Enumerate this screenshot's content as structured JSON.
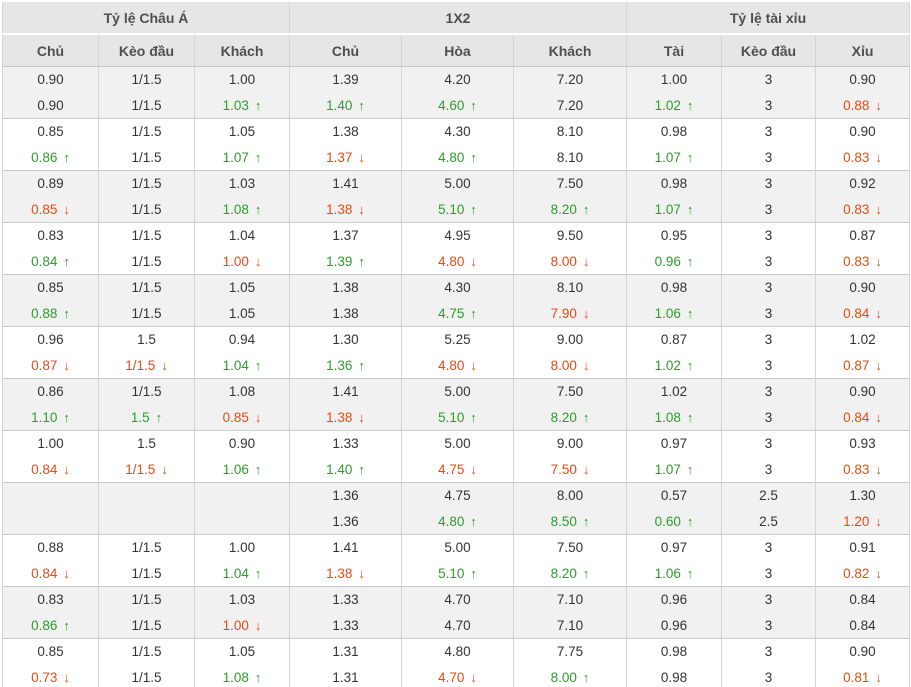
{
  "colors": {
    "up": "#2d9c2d",
    "down": "#e84a15",
    "header_bg": "#e6e6e6",
    "row_shade": "#f1f1f1",
    "text": "#333333",
    "header_text": "#4f4f4f",
    "border": "#d4d4d4"
  },
  "icons": {
    "up": "↑",
    "down": "↓"
  },
  "table": {
    "sections": [
      {
        "label": "Tỷ lệ Châu Á",
        "columns": [
          "Chủ",
          "Kèo đầu",
          "Khách"
        ]
      },
      {
        "label": "1X2",
        "columns": [
          "Chủ",
          "Hòa",
          "Khách"
        ]
      },
      {
        "label": "Tỷ lệ tài xỉu",
        "columns": [
          "Tài",
          "Kèo đầu",
          "Xỉu"
        ]
      }
    ],
    "rows": [
      [
        [
          "0.90",
          ""
        ],
        [
          "1/1.5",
          ""
        ],
        [
          "1.00",
          ""
        ],
        [
          "1.39",
          ""
        ],
        [
          "4.20",
          ""
        ],
        [
          "7.20",
          ""
        ],
        [
          "1.00",
          ""
        ],
        [
          "3",
          ""
        ],
        [
          "0.90",
          ""
        ]
      ],
      [
        [
          "0.90",
          ""
        ],
        [
          "1/1.5",
          ""
        ],
        [
          "1.03",
          "up"
        ],
        [
          "1.40",
          "up"
        ],
        [
          "4.60",
          "up"
        ],
        [
          "7.20",
          ""
        ],
        [
          "1.02",
          "up"
        ],
        [
          "3",
          ""
        ],
        [
          "0.88",
          "down"
        ]
      ],
      [
        [
          "0.85",
          ""
        ],
        [
          "1/1.5",
          ""
        ],
        [
          "1.05",
          ""
        ],
        [
          "1.38",
          ""
        ],
        [
          "4.30",
          ""
        ],
        [
          "8.10",
          ""
        ],
        [
          "0.98",
          ""
        ],
        [
          "3",
          ""
        ],
        [
          "0.90",
          ""
        ]
      ],
      [
        [
          "0.86",
          "up"
        ],
        [
          "1/1.5",
          ""
        ],
        [
          "1.07",
          "up"
        ],
        [
          "1.37",
          "down"
        ],
        [
          "4.80",
          "up"
        ],
        [
          "8.10",
          ""
        ],
        [
          "1.07",
          "up"
        ],
        [
          "3",
          ""
        ],
        [
          "0.83",
          "down"
        ]
      ],
      [
        [
          "0.89",
          ""
        ],
        [
          "1/1.5",
          ""
        ],
        [
          "1.03",
          ""
        ],
        [
          "1.41",
          ""
        ],
        [
          "5.00",
          ""
        ],
        [
          "7.50",
          ""
        ],
        [
          "0.98",
          ""
        ],
        [
          "3",
          ""
        ],
        [
          "0.92",
          ""
        ]
      ],
      [
        [
          "0.85",
          "down"
        ],
        [
          "1/1.5",
          ""
        ],
        [
          "1.08",
          "up"
        ],
        [
          "1.38",
          "down"
        ],
        [
          "5.10",
          "up"
        ],
        [
          "8.20",
          "up"
        ],
        [
          "1.07",
          "up"
        ],
        [
          "3",
          ""
        ],
        [
          "0.83",
          "down"
        ]
      ],
      [
        [
          "0.83",
          ""
        ],
        [
          "1/1.5",
          ""
        ],
        [
          "1.04",
          ""
        ],
        [
          "1.37",
          ""
        ],
        [
          "4.95",
          ""
        ],
        [
          "9.50",
          ""
        ],
        [
          "0.95",
          ""
        ],
        [
          "3",
          ""
        ],
        [
          "0.87",
          ""
        ]
      ],
      [
        [
          "0.84",
          "up"
        ],
        [
          "1/1.5",
          ""
        ],
        [
          "1.00",
          "down"
        ],
        [
          "1.39",
          "up"
        ],
        [
          "4.80",
          "down"
        ],
        [
          "8.00",
          "down"
        ],
        [
          "0.96",
          "up"
        ],
        [
          "3",
          ""
        ],
        [
          "0.83",
          "down"
        ]
      ],
      [
        [
          "0.85",
          ""
        ],
        [
          "1/1.5",
          ""
        ],
        [
          "1.05",
          ""
        ],
        [
          "1.38",
          ""
        ],
        [
          "4.30",
          ""
        ],
        [
          "8.10",
          ""
        ],
        [
          "0.98",
          ""
        ],
        [
          "3",
          ""
        ],
        [
          "0.90",
          ""
        ]
      ],
      [
        [
          "0.88",
          "up"
        ],
        [
          "1/1.5",
          ""
        ],
        [
          "1.05",
          ""
        ],
        [
          "1.38",
          ""
        ],
        [
          "4.75",
          "up"
        ],
        [
          "7.90",
          "down"
        ],
        [
          "1.06",
          "up"
        ],
        [
          "3",
          ""
        ],
        [
          "0.84",
          "down"
        ]
      ],
      [
        [
          "0.96",
          ""
        ],
        [
          "1.5",
          ""
        ],
        [
          "0.94",
          ""
        ],
        [
          "1.30",
          ""
        ],
        [
          "5.25",
          ""
        ],
        [
          "9.00",
          ""
        ],
        [
          "0.87",
          ""
        ],
        [
          "3",
          ""
        ],
        [
          "1.02",
          ""
        ]
      ],
      [
        [
          "0.87",
          "down"
        ],
        [
          "1/1.5",
          "down"
        ],
        [
          "1.04",
          "up"
        ],
        [
          "1.36",
          "up"
        ],
        [
          "4.80",
          "down"
        ],
        [
          "8.00",
          "down"
        ],
        [
          "1.02",
          "up"
        ],
        [
          "3",
          ""
        ],
        [
          "0.87",
          "down"
        ]
      ],
      [
        [
          "0.86",
          ""
        ],
        [
          "1/1.5",
          ""
        ],
        [
          "1.08",
          ""
        ],
        [
          "1.41",
          ""
        ],
        [
          "5.00",
          ""
        ],
        [
          "7.50",
          ""
        ],
        [
          "1.02",
          ""
        ],
        [
          "3",
          ""
        ],
        [
          "0.90",
          ""
        ]
      ],
      [
        [
          "1.10",
          "up"
        ],
        [
          "1.5",
          "up"
        ],
        [
          "0.85",
          "down"
        ],
        [
          "1.38",
          "down"
        ],
        [
          "5.10",
          "up"
        ],
        [
          "8.20",
          "up"
        ],
        [
          "1.08",
          "up"
        ],
        [
          "3",
          ""
        ],
        [
          "0.84",
          "down"
        ]
      ],
      [
        [
          "1.00",
          ""
        ],
        [
          "1.5",
          ""
        ],
        [
          "0.90",
          ""
        ],
        [
          "1.33",
          ""
        ],
        [
          "5.00",
          ""
        ],
        [
          "9.00",
          ""
        ],
        [
          "0.97",
          ""
        ],
        [
          "3",
          ""
        ],
        [
          "0.93",
          ""
        ]
      ],
      [
        [
          "0.84",
          "down"
        ],
        [
          "1/1.5",
          "down"
        ],
        [
          "1.06",
          "up"
        ],
        [
          "1.40",
          "up"
        ],
        [
          "4.75",
          "down"
        ],
        [
          "7.50",
          "down"
        ],
        [
          "1.07",
          "up"
        ],
        [
          "3",
          ""
        ],
        [
          "0.83",
          "down"
        ]
      ],
      [
        [
          "",
          ""
        ],
        [
          "",
          ""
        ],
        [
          "",
          ""
        ],
        [
          "1.36",
          ""
        ],
        [
          "4.75",
          ""
        ],
        [
          "8.00",
          ""
        ],
        [
          "0.57",
          ""
        ],
        [
          "2.5",
          ""
        ],
        [
          "1.30",
          ""
        ]
      ],
      [
        [
          "",
          ""
        ],
        [
          "",
          ""
        ],
        [
          "",
          ""
        ],
        [
          "1.36",
          ""
        ],
        [
          "4.80",
          "up"
        ],
        [
          "8.50",
          "up"
        ],
        [
          "0.60",
          "up"
        ],
        [
          "2.5",
          ""
        ],
        [
          "1.20",
          "down"
        ]
      ],
      [
        [
          "0.88",
          ""
        ],
        [
          "1/1.5",
          ""
        ],
        [
          "1.00",
          ""
        ],
        [
          "1.41",
          ""
        ],
        [
          "5.00",
          ""
        ],
        [
          "7.50",
          ""
        ],
        [
          "0.97",
          ""
        ],
        [
          "3",
          ""
        ],
        [
          "0.91",
          ""
        ]
      ],
      [
        [
          "0.84",
          "down"
        ],
        [
          "1/1.5",
          ""
        ],
        [
          "1.04",
          "up"
        ],
        [
          "1.38",
          "down"
        ],
        [
          "5.10",
          "up"
        ],
        [
          "8.20",
          "up"
        ],
        [
          "1.06",
          "up"
        ],
        [
          "3",
          ""
        ],
        [
          "0.82",
          "down"
        ]
      ],
      [
        [
          "0.83",
          ""
        ],
        [
          "1/1.5",
          ""
        ],
        [
          "1.03",
          ""
        ],
        [
          "1.33",
          ""
        ],
        [
          "4.70",
          ""
        ],
        [
          "7.10",
          ""
        ],
        [
          "0.96",
          ""
        ],
        [
          "3",
          ""
        ],
        [
          "0.84",
          ""
        ]
      ],
      [
        [
          "0.86",
          "up"
        ],
        [
          "1/1.5",
          ""
        ],
        [
          "1.00",
          "down"
        ],
        [
          "1.33",
          ""
        ],
        [
          "4.70",
          ""
        ],
        [
          "7.10",
          ""
        ],
        [
          "0.96",
          ""
        ],
        [
          "3",
          ""
        ],
        [
          "0.84",
          ""
        ]
      ],
      [
        [
          "0.85",
          ""
        ],
        [
          "1/1.5",
          ""
        ],
        [
          "1.05",
          ""
        ],
        [
          "1.31",
          ""
        ],
        [
          "4.80",
          ""
        ],
        [
          "7.75",
          ""
        ],
        [
          "0.98",
          ""
        ],
        [
          "3",
          ""
        ],
        [
          "0.90",
          ""
        ]
      ],
      [
        [
          "0.73",
          "down"
        ],
        [
          "1/1.5",
          ""
        ],
        [
          "1.08",
          "up"
        ],
        [
          "1.31",
          ""
        ],
        [
          "4.70",
          "down"
        ],
        [
          "8.00",
          "up"
        ],
        [
          "0.98",
          ""
        ],
        [
          "3",
          ""
        ],
        [
          "0.81",
          "down"
        ]
      ]
    ]
  }
}
